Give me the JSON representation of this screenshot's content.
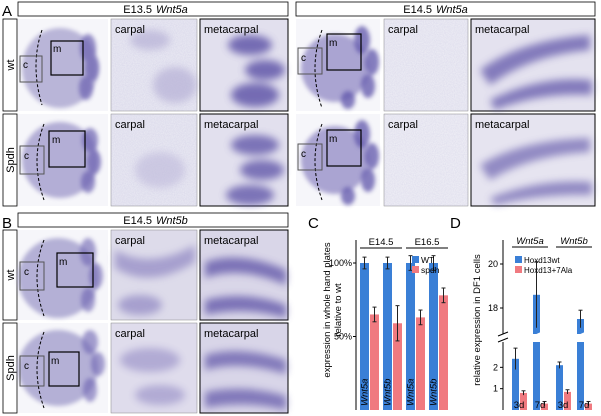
{
  "panels": {
    "A": {
      "letter": "A",
      "left_header_stage": "E13.5",
      "left_header_gene": "Wnt5a",
      "right_header_stage": "E14.5",
      "right_header_gene": "Wnt5a",
      "row_wt": "wt",
      "row_spdh": "Spdh"
    },
    "B": {
      "letter": "B",
      "header_stage": "E14.5",
      "header_gene": "Wnt5b",
      "row_wt": "wt",
      "row_spdh": "Spdh"
    },
    "C": {
      "letter": "C"
    },
    "D": {
      "letter": "D"
    }
  },
  "labels": {
    "carpal": "carpal",
    "metacarpal": "metacarpal",
    "box_c": "c",
    "box_m": "m"
  },
  "colors": {
    "wt": "#3a7fd6",
    "mutant": "#f07a80",
    "stain": "#4a3f9a"
  },
  "chart_data": [
    {
      "type": "bar",
      "ylabel_line1": "expression in whole hand plates",
      "ylabel_line2": "relative to wt",
      "ylim": [
        0,
        100
      ],
      "yticks": [
        "50%",
        "100%"
      ],
      "groups": [
        "E14.5",
        "E16.5"
      ],
      "categories": [
        "Wnt5a",
        "Wnt5b",
        "Wnt5a",
        "Wnt5b"
      ],
      "legend": [
        "WT",
        "spdh"
      ],
      "legend_placement": "top-right",
      "series": [
        {
          "name": "WT",
          "values": [
            100,
            100,
            100,
            100
          ],
          "errors": [
            4,
            4,
            5,
            5
          ]
        },
        {
          "name": "spdh",
          "values": [
            65,
            59,
            63,
            78
          ],
          "errors": [
            5,
            12,
            5,
            5
          ]
        }
      ]
    },
    {
      "type": "bar",
      "ylabel": "relative expression in DF1 cells",
      "axis_break": true,
      "yticks": [
        1,
        2,
        18,
        20
      ],
      "ylim": [
        0,
        21
      ],
      "group_labels": [
        "Wnt5a",
        "Wnt5b"
      ],
      "categories": [
        "3d",
        "7d",
        "3d",
        "7d"
      ],
      "legend": [
        "Hoxd13wt",
        "Hoxd13+7Ala"
      ],
      "legend_placement": "top-right",
      "series": [
        {
          "name": "Hoxd13wt",
          "values": [
            2.4,
            18.6,
            2.1,
            17.5
          ],
          "errors": [
            0.5,
            1.5,
            0.15,
            0.4
          ]
        },
        {
          "name": "Hoxd13+7Ala",
          "values": [
            0.8,
            0.3,
            0.85,
            0.3
          ],
          "errors": [
            0.1,
            0.1,
            0.1,
            0.1
          ]
        }
      ]
    }
  ]
}
